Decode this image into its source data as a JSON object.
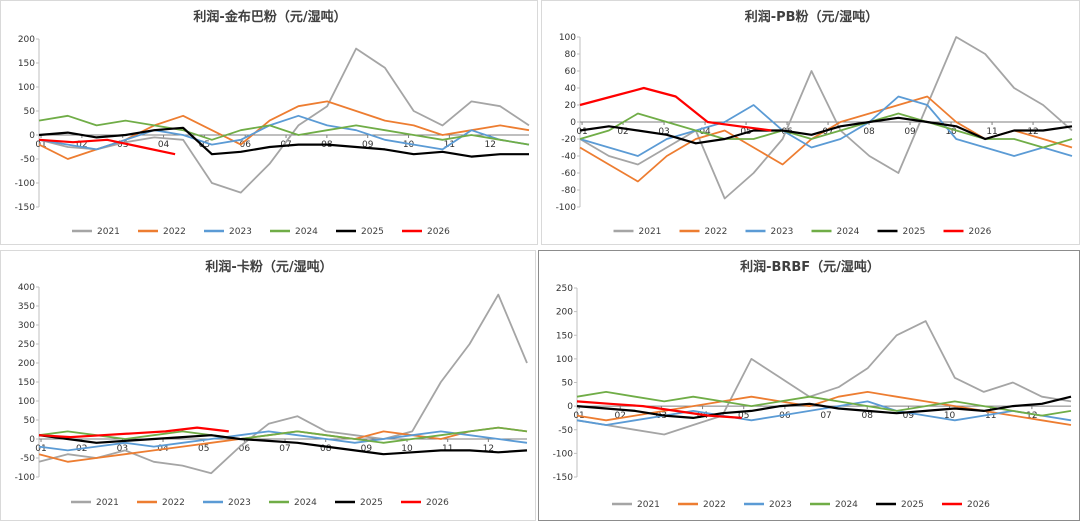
{
  "chart_data": [
    {
      "type": "line",
      "title": "利润-金布巴粉（元/湿吨）",
      "ylim": [
        -150,
        200
      ],
      "yticks": [
        200,
        150,
        100,
        50,
        0,
        -50,
        -100,
        -150
      ],
      "xlabels": [
        "01",
        "02",
        "03",
        "04",
        "05",
        "06",
        "07",
        "08",
        "09",
        "10",
        "11",
        "12"
      ],
      "grid": false,
      "legend": "bottom",
      "series": [
        {
          "name": "2021",
          "color": "#a5a5a5",
          "values": [
            -10,
            -25,
            -30,
            -15,
            -5,
            -10,
            -100,
            -120,
            -60,
            20,
            60,
            180,
            140,
            50,
            20,
            70,
            60,
            20
          ]
        },
        {
          "name": "2022",
          "color": "#ed7d31",
          "values": [
            -20,
            -50,
            -30,
            -10,
            20,
            40,
            10,
            -20,
            30,
            60,
            70,
            50,
            30,
            20,
            0,
            10,
            20,
            10
          ]
        },
        {
          "name": "2023",
          "color": "#5b9bd5",
          "values": [
            -10,
            -20,
            -30,
            -10,
            10,
            0,
            -20,
            -10,
            20,
            40,
            20,
            10,
            -10,
            -20,
            -30,
            10,
            -10,
            -20
          ]
        },
        {
          "name": "2024",
          "color": "#70ad47",
          "values": [
            30,
            40,
            20,
            30,
            20,
            10,
            -10,
            10,
            20,
            0,
            10,
            20,
            10,
            0,
            -10,
            0,
            -10,
            -20
          ]
        },
        {
          "name": "2025",
          "color": "#000000",
          "values": [
            0,
            5,
            -5,
            0,
            10,
            15,
            -40,
            -35,
            -25,
            -20,
            -20,
            -25,
            -30,
            -40,
            -35,
            -45,
            -40,
            -40
          ]
        },
        {
          "name": "2026",
          "color": "#ff0000",
          "values": [
            -10,
            -15,
            -10,
            -25,
            -40
          ]
        }
      ]
    },
    {
      "type": "line",
      "title": "利润-PB粉（元/湿吨）",
      "ylim": [
        -100,
        100
      ],
      "yticks": [
        100,
        80,
        60,
        40,
        20,
        0,
        -20,
        -40,
        -60,
        -80,
        -100
      ],
      "xlabels": [
        "01",
        "02",
        "03",
        "04",
        "05",
        "06",
        "07",
        "08",
        "09",
        "10",
        "11",
        "12"
      ],
      "grid": false,
      "legend": "bottom",
      "series": [
        {
          "name": "2021",
          "color": "#a5a5a5",
          "values": [
            -20,
            -40,
            -50,
            -30,
            -10,
            -90,
            -60,
            -20,
            60,
            -10,
            -40,
            -60,
            20,
            100,
            80,
            40,
            20,
            -10
          ]
        },
        {
          "name": "2022",
          "color": "#ed7d31",
          "values": [
            -30,
            -50,
            -70,
            -40,
            -20,
            -10,
            -30,
            -50,
            -20,
            0,
            10,
            20,
            30,
            0,
            -20,
            -10,
            -20,
            -30
          ]
        },
        {
          "name": "2023",
          "color": "#5b9bd5",
          "values": [
            -20,
            -30,
            -40,
            -20,
            -10,
            0,
            20,
            -10,
            -30,
            -20,
            0,
            30,
            20,
            -20,
            -30,
            -40,
            -30,
            -40
          ]
        },
        {
          "name": "2024",
          "color": "#70ad47",
          "values": [
            -20,
            -10,
            10,
            0,
            -10,
            -20,
            -20,
            -10,
            -20,
            -10,
            0,
            10,
            0,
            -10,
            -20,
            -20,
            -30,
            -20
          ]
        },
        {
          "name": "2025",
          "color": "#000000",
          "values": [
            -10,
            -5,
            -10,
            -15,
            -25,
            -20,
            -10,
            -10,
            -15,
            -5,
            0,
            5,
            0,
            -5,
            -20,
            -10,
            -10,
            -5
          ]
        },
        {
          "name": "2026",
          "color": "#ff0000",
          "values": [
            20,
            30,
            40,
            30,
            0,
            -5,
            -10
          ]
        }
      ]
    },
    {
      "type": "line",
      "title": "利润-卡粉（元/湿吨）",
      "ylim": [
        -100,
        400
      ],
      "yticks": [
        400,
        350,
        300,
        250,
        200,
        150,
        100,
        50,
        0,
        -50,
        -100
      ],
      "xlabels": [
        "01",
        "02",
        "03",
        "04",
        "05",
        "06",
        "07",
        "08",
        "09",
        "10",
        "11",
        "12"
      ],
      "grid": false,
      "legend": "bottom",
      "series": [
        {
          "name": "2021",
          "color": "#a5a5a5",
          "values": [
            -60,
            -40,
            -50,
            -30,
            -60,
            -70,
            -90,
            -20,
            40,
            60,
            20,
            10,
            0,
            20,
            150,
            250,
            380,
            200
          ]
        },
        {
          "name": "2022",
          "color": "#ed7d31",
          "values": [
            -40,
            -60,
            -50,
            -40,
            -30,
            -20,
            -10,
            0,
            10,
            20,
            10,
            0,
            20,
            10,
            0,
            20,
            30,
            20
          ]
        },
        {
          "name": "2023",
          "color": "#5b9bd5",
          "values": [
            -20,
            -30,
            -20,
            -10,
            -20,
            -10,
            0,
            10,
            20,
            10,
            0,
            -10,
            0,
            10,
            20,
            10,
            0,
            -10
          ]
        },
        {
          "name": "2024",
          "color": "#70ad47",
          "values": [
            10,
            20,
            10,
            0,
            10,
            20,
            10,
            0,
            10,
            20,
            10,
            0,
            -10,
            0,
            10,
            20,
            30,
            20
          ]
        },
        {
          "name": "2025",
          "color": "#000000",
          "values": [
            10,
            0,
            -10,
            -5,
            0,
            5,
            10,
            0,
            -5,
            -10,
            -20,
            -30,
            -40,
            -35,
            -30,
            -30,
            -35,
            -30
          ]
        },
        {
          "name": "2026",
          "color": "#ff0000",
          "values": [
            10,
            5,
            10,
            15,
            20,
            30,
            20
          ]
        }
      ]
    },
    {
      "type": "line",
      "title": "利润-BRBF（元/湿吨）",
      "ylim": [
        -150,
        250
      ],
      "yticks": [
        250,
        200,
        150,
        100,
        50,
        0,
        -50,
        -100,
        -150
      ],
      "xlabels": [
        "01",
        "02",
        "03",
        "04",
        "05",
        "06",
        "07",
        "08",
        "09",
        "10",
        "11",
        "12"
      ],
      "grid": false,
      "legend": "bottom",
      "series": [
        {
          "name": "2021",
          "color": "#a5a5a5",
          "values": [
            -30,
            -40,
            -50,
            -60,
            -40,
            -20,
            100,
            60,
            20,
            40,
            80,
            150,
            180,
            60,
            30,
            50,
            20,
            10
          ]
        },
        {
          "name": "2022",
          "color": "#ed7d31",
          "values": [
            -20,
            -30,
            -20,
            -10,
            0,
            10,
            20,
            10,
            0,
            20,
            30,
            20,
            10,
            0,
            -10,
            -20,
            -30,
            -40
          ]
        },
        {
          "name": "2023",
          "color": "#5b9bd5",
          "values": [
            -30,
            -40,
            -30,
            -20,
            -10,
            -20,
            -30,
            -20,
            -10,
            0,
            10,
            -10,
            -20,
            -30,
            -20,
            -10,
            -20,
            -30
          ]
        },
        {
          "name": "2024",
          "color": "#70ad47",
          "values": [
            20,
            30,
            20,
            10,
            20,
            10,
            0,
            10,
            20,
            10,
            0,
            -10,
            0,
            10,
            0,
            -10,
            -20,
            -10
          ]
        },
        {
          "name": "2025",
          "color": "#000000",
          "values": [
            0,
            -5,
            -10,
            -20,
            -25,
            -15,
            -10,
            0,
            5,
            -5,
            -10,
            -15,
            -10,
            -5,
            -10,
            0,
            5,
            20
          ]
        },
        {
          "name": "2026",
          "color": "#ff0000",
          "values": [
            10,
            5,
            0,
            -10,
            -20,
            -25
          ]
        }
      ]
    }
  ]
}
